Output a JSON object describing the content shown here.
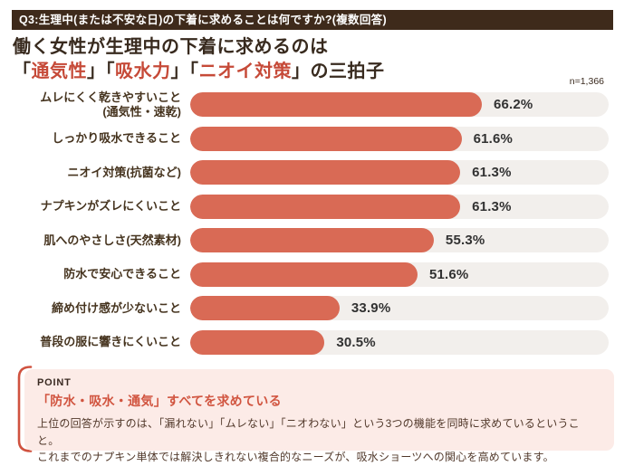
{
  "header": {
    "question": "Q3:生理中(または不安な日)の下着に求めることは何ですか?(複数回答)"
  },
  "title": {
    "line1": "働く女性が生理中の下着に求めるのは",
    "line2_parts": [
      {
        "text": "「",
        "accent": false
      },
      {
        "text": "通気性",
        "accent": true
      },
      {
        "text": "」「",
        "accent": false
      },
      {
        "text": "吸水力",
        "accent": true
      },
      {
        "text": "」「",
        "accent": false
      },
      {
        "text": "ニオイ対策",
        "accent": true
      },
      {
        "text": "」",
        "accent": false
      },
      {
        "text": "の三拍子",
        "accent": false
      }
    ],
    "sample_note": "n=1,366"
  },
  "chart_data": {
    "type": "bar",
    "orientation": "horizontal",
    "unit": "%",
    "xlim": [
      0,
      95
    ],
    "grid": false,
    "legend": "none",
    "sample_size": "n=1,366",
    "categories": [
      "ムレにくく乾きやすいこと\n(通気性・速乾)",
      "しっかり吸水できること",
      "ニオイ対策(抗菌など)",
      "ナプキンがズレにくいこと",
      "肌へのやさしさ(天然素材)",
      "防水で安心できること",
      "締め付け感が少ないこと",
      "普段の服に響きにくいこと"
    ],
    "values": [
      66.2,
      61.6,
      61.3,
      61.3,
      55.3,
      51.6,
      33.9,
      30.5
    ],
    "value_labels": [
      "66.2%",
      "61.6%",
      "61.3%",
      "61.3%",
      "55.3%",
      "51.6%",
      "33.9%",
      "30.5%"
    ]
  },
  "point": {
    "label": "POINT",
    "heading": "「防水・吸水・通気」すべてを求めている",
    "body_lines": [
      "上位の回答が示すのは、「漏れない」「ムレない」「ニオわない」という3つの機能を同時に求めているということ。",
      "これまでのナプキン単体では解決しきれない複合的なニーズが、吸水ショーツへの関心を高めています。"
    ]
  },
  "colors": {
    "header_bg": "#3e2a1b",
    "header_text": "#ffffff",
    "title_text": "#382a1e",
    "accent_red": "#c64a38",
    "bar_fill": "#d96a55",
    "bar_track": "#f2efec",
    "value_text": "#323232",
    "label_text": "#46341f",
    "point_bg": "#fcebe7",
    "point_heading": "#d15540",
    "point_body": "#51382a",
    "point_bracket": "#d0523f"
  }
}
